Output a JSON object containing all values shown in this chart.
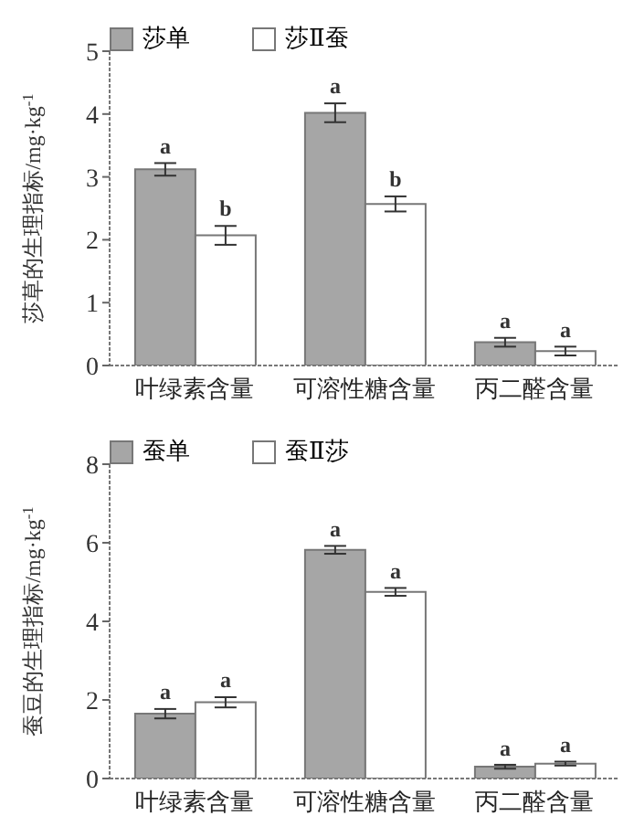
{
  "chart_data": [
    {
      "type": "bar",
      "ylabel": "莎草的生理指标/mg·kg$^{-1}$",
      "categories": [
        "叶绿素含量",
        "可溶性糖含量",
        "丙二醛含量"
      ],
      "ylim": [
        0,
        5
      ],
      "yticks": [
        0,
        1,
        2,
        3,
        4,
        5
      ],
      "grid": false,
      "legend": "top left",
      "series": [
        {
          "name": "莎单",
          "color": "#a6a6a6",
          "values": [
            3.12,
            4.02,
            0.37
          ],
          "errors": [
            0.1,
            0.15,
            0.07
          ],
          "value_labels": [
            "a",
            "a",
            "a"
          ]
        },
        {
          "name": "莎Ⅱ蚕",
          "color": "#ffffff",
          "values": [
            2.07,
            2.57,
            0.23
          ],
          "errors": [
            0.15,
            0.12,
            0.07
          ],
          "value_labels": [
            "b",
            "b",
            "a"
          ]
        }
      ]
    },
    {
      "type": "bar",
      "ylabel": "蚕豆的生理指标/mg·kg$^{-1}$",
      "categories": [
        "叶绿素含量",
        "可溶性糖含量",
        "丙二醛含量"
      ],
      "ylim": [
        0,
        8
      ],
      "yticks": [
        0,
        2,
        4,
        6,
        8
      ],
      "grid": false,
      "legend": "top left",
      "series": [
        {
          "name": "蚕单",
          "color": "#a6a6a6",
          "values": [
            1.65,
            5.82,
            0.3
          ],
          "errors": [
            0.12,
            0.1,
            0.05
          ],
          "value_labels": [
            "a",
            "a",
            "a"
          ]
        },
        {
          "name": "蚕Ⅱ莎",
          "color": "#ffffff",
          "values": [
            1.94,
            4.75,
            0.38
          ],
          "errors": [
            0.13,
            0.1,
            0.05
          ],
          "value_labels": [
            "a",
            "a",
            "a"
          ]
        }
      ]
    }
  ]
}
